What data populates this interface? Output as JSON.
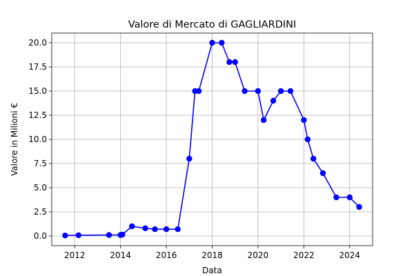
{
  "chart_data": {
    "type": "line",
    "title": "Valore di Mercato di GAGLIARDINI",
    "xlabel": "Data",
    "ylabel": "Valore in Milioni €",
    "xlim": [
      "2011-01-01",
      "2025-01-01"
    ],
    "ylim": [
      -1,
      21
    ],
    "x_ticks": [
      "2012",
      "2014",
      "2016",
      "2018",
      "2020",
      "2022",
      "2024"
    ],
    "y_ticks": [
      "0.0",
      "2.5",
      "5.0",
      "7.5",
      "10.0",
      "12.5",
      "15.0",
      "17.5",
      "20.0"
    ],
    "grid": true,
    "colors": {
      "series": "#0000ff",
      "grid": "#b0b0b0"
    },
    "series": [
      {
        "x": [
          "2011-08-01",
          "2012-03-01",
          "2013-07-01",
          "2014-01-01",
          "2014-02-01",
          "2014-07-01",
          "2015-02-01",
          "2015-07-01",
          "2016-01-01",
          "2016-07-01",
          "2017-01-01",
          "2017-04-01",
          "2017-06-01",
          "2018-01-01",
          "2018-06-01",
          "2018-10-01",
          "2019-01-01",
          "2019-06-01",
          "2020-01-01",
          "2020-04-01",
          "2020-09-01",
          "2021-01-01",
          "2021-06-01",
          "2022-01-01",
          "2022-03-01",
          "2022-06-01",
          "2022-11-01",
          "2023-06-01",
          "2024-01-01",
          "2024-06-01"
        ],
        "y": [
          0.05,
          0.08,
          0.1,
          0.1,
          0.15,
          1.0,
          0.8,
          0.7,
          0.7,
          0.7,
          8.0,
          15.0,
          15.0,
          20.0,
          20.0,
          18.0,
          18.0,
          15.0,
          15.0,
          12.0,
          14.0,
          15.0,
          15.0,
          12.0,
          10.0,
          8.0,
          6.5,
          4.0,
          4.0,
          3.0
        ]
      }
    ]
  }
}
